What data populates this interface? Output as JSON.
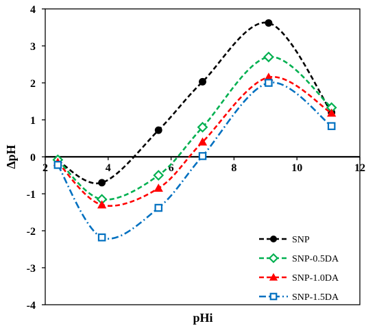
{
  "chart_data": {
    "type": "line",
    "xlabel": "pHi",
    "ylabel": "ΔpH",
    "xlim": [
      2,
      12
    ],
    "ylim": [
      -4,
      4
    ],
    "x_ticks": [
      2,
      4,
      6,
      8,
      10,
      12
    ],
    "y_ticks": [
      -4,
      -3,
      -2,
      -1,
      0,
      1,
      2,
      3,
      4
    ],
    "x_tick_labels": [
      "2",
      "4",
      "6",
      "8",
      "10",
      "12"
    ],
    "y_tick_labels": [
      "-4",
      "-3",
      "-2",
      "-1",
      "0",
      "1",
      "2",
      "3",
      "4"
    ],
    "grid": false,
    "legend_position": "bottom-right",
    "series": [
      {
        "name": "SNP",
        "color": "#000000",
        "marker": "circle-filled",
        "line_style": "dashed",
        "x": [
          2.4,
          3.8,
          5.6,
          7.0,
          9.1,
          11.1
        ],
        "y": [
          -0.1,
          -0.7,
          0.72,
          2.03,
          3.62,
          1.2
        ]
      },
      {
        "name": "SNP-0.5DA",
        "color": "#00b050",
        "marker": "diamond-open",
        "line_style": "dashed",
        "x": [
          2.4,
          3.8,
          5.6,
          7.0,
          9.1,
          11.1
        ],
        "y": [
          -0.08,
          -1.15,
          -0.5,
          0.8,
          2.7,
          1.33
        ]
      },
      {
        "name": "SNP-1.0DA",
        "color": "#ff0000",
        "marker": "triangle-filled",
        "line_style": "dashed",
        "x": [
          2.4,
          3.8,
          5.6,
          7.0,
          9.1,
          11.1
        ],
        "y": [
          -0.15,
          -1.3,
          -0.85,
          0.4,
          2.15,
          1.18
        ]
      },
      {
        "name": "SNP-1.5DA",
        "color": "#0070c0",
        "marker": "square-open",
        "line_style": "dash-dot",
        "x": [
          2.4,
          3.8,
          5.6,
          7.0,
          9.1,
          11.1
        ],
        "y": [
          -0.22,
          -2.18,
          -1.38,
          0.02,
          2.0,
          0.83
        ]
      }
    ]
  }
}
